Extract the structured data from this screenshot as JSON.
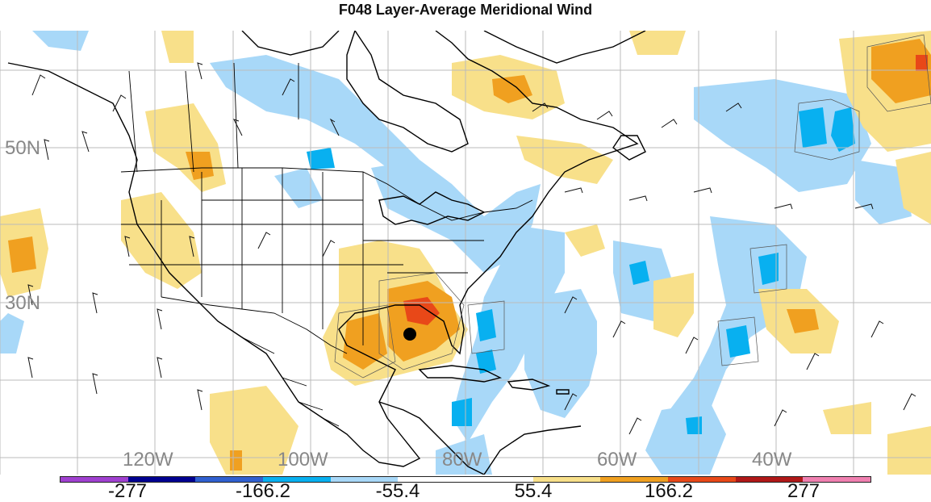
{
  "title": "F048 Layer-Average Meridional Wind",
  "lat_labels": [
    "50N",
    "30N"
  ],
  "lon_labels": [
    "120W",
    "100W",
    "80W",
    "60W",
    "40W"
  ],
  "colorbar": {
    "colors": [
      "#a040d0",
      "#000090",
      "#3060d0",
      "#08b0f0",
      "#a8d8f8",
      "#ffffff",
      "#ffffff",
      "#f8e08a",
      "#f0a020",
      "#e84818",
      "#b01818",
      "#f080b0"
    ],
    "labels": [
      "-277",
      "-166.2",
      "-55.4",
      "55.4",
      "166.2",
      "277"
    ]
  },
  "map": {
    "colors": {
      "light_blue": "#a8d8f8",
      "blue": "#08b0f0",
      "light_yellow": "#f8e08a",
      "orange": "#f0a020",
      "red": "#e84818",
      "gridline": "#bbbbbb",
      "coast": "#000000"
    },
    "storm_marker": "storm-center-dot"
  }
}
